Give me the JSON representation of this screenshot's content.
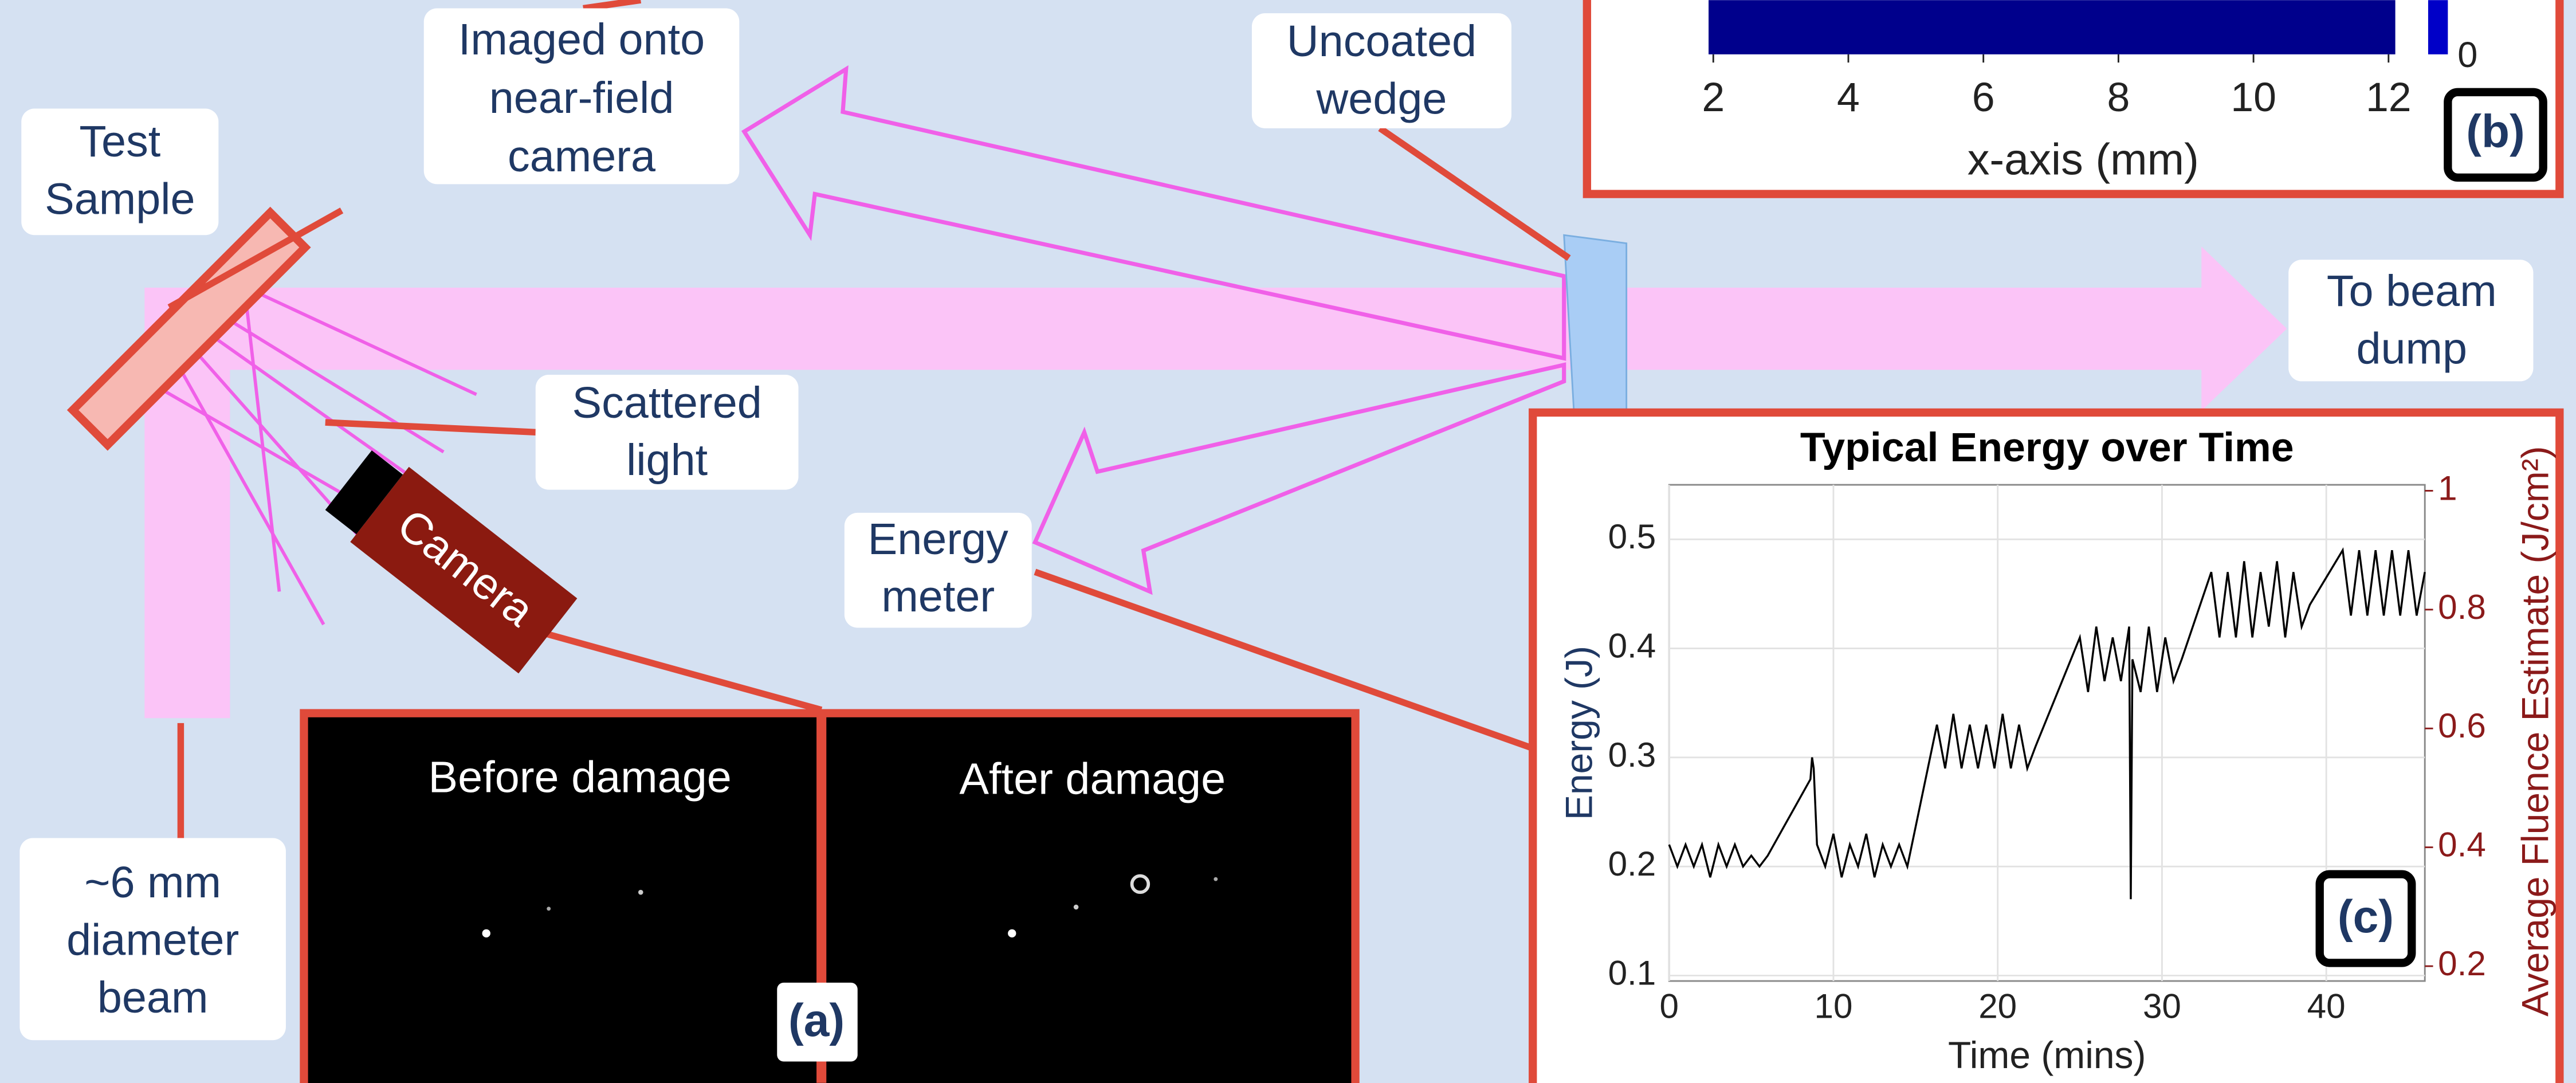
{
  "labels": {
    "imaged": [
      "Imaged onto",
      "near-field",
      "camera"
    ],
    "wedge": [
      "Uncoated",
      "wedge"
    ],
    "test_sample": [
      "Test",
      "Sample"
    ],
    "scattered": [
      "Scattered",
      "light"
    ],
    "energy_meter": [
      "Energy",
      "meter"
    ],
    "beam": [
      "~6 mm",
      "diameter",
      "beam"
    ],
    "beam_dump": [
      "To beam",
      "dump"
    ],
    "camera": "Camera"
  },
  "panel_a": {
    "before": "Before damage",
    "after": "After damage",
    "label": "(a)"
  },
  "panel_b": {
    "x_label": "x-axis (mm)",
    "xlim": [
      1.93,
      12.1
    ],
    "xticks": [
      2,
      4,
      6,
      8,
      10,
      12
    ],
    "colorbar_ticks": [
      0
    ],
    "label": "(b)"
  },
  "chart_data": {
    "type": "line",
    "title": "Typical Energy over Time",
    "x_label": "Time (mins)",
    "y_label": "Energy (J)",
    "y2_label": "Average Fluence Estimate (J/cm²)",
    "label": "(c)",
    "xlim": [
      0,
      46
    ],
    "xticks": [
      0,
      10,
      20,
      30,
      40
    ],
    "ylim": [
      0.095,
      0.55
    ],
    "yticks": [
      0.1,
      0.2,
      0.3,
      0.4,
      0.5
    ],
    "y2lim": [
      0.175,
      1.01
    ],
    "y2ticks": [
      0.2,
      0.4,
      0.6,
      0.8,
      1
    ],
    "grid": true,
    "x": [
      0,
      0.5,
      1,
      1.5,
      2,
      2.5,
      3,
      3.5,
      4,
      4.5,
      5,
      5.5,
      6,
      8.6,
      8.7,
      8.8,
      9,
      9.5,
      10,
      10.5,
      11,
      11.5,
      12,
      12.5,
      13,
      13.5,
      14,
      14.5,
      16.3,
      16.8,
      17.3,
      17.8,
      18.3,
      18.8,
      19.3,
      19.8,
      20.3,
      20.8,
      21.3,
      21.8,
      22.3,
      25,
      25.5,
      26,
      26.5,
      27,
      27.5,
      28,
      28.1,
      28.2,
      28.7,
      29.2,
      29.7,
      30.2,
      30.7,
      31.2,
      33,
      33.5,
      34,
      34.5,
      35,
      35.5,
      36,
      36.5,
      37,
      37.5,
      38,
      38.5,
      39,
      41,
      41.5,
      42,
      42.5,
      43,
      43.5,
      44,
      44.5,
      45,
      45.5,
      46
    ],
    "series": [
      {
        "name": "Energy",
        "color": "#000000",
        "values": [
          0.22,
          0.2,
          0.22,
          0.2,
          0.22,
          0.19,
          0.22,
          0.2,
          0.22,
          0.2,
          0.21,
          0.2,
          0.21,
          0.28,
          0.3,
          0.29,
          0.22,
          0.2,
          0.23,
          0.19,
          0.22,
          0.2,
          0.23,
          0.19,
          0.22,
          0.2,
          0.22,
          0.2,
          0.33,
          0.29,
          0.34,
          0.29,
          0.33,
          0.29,
          0.33,
          0.29,
          0.34,
          0.29,
          0.33,
          0.29,
          0.31,
          0.41,
          0.36,
          0.42,
          0.37,
          0.41,
          0.37,
          0.42,
          0.17,
          0.39,
          0.36,
          0.42,
          0.36,
          0.41,
          0.37,
          0.39,
          0.47,
          0.41,
          0.47,
          0.41,
          0.48,
          0.41,
          0.47,
          0.42,
          0.48,
          0.41,
          0.47,
          0.42,
          0.44,
          0.49,
          0.43,
          0.49,
          0.43,
          0.49,
          0.43,
          0.49,
          0.43,
          0.49,
          0.43,
          0.47
        ]
      }
    ]
  }
}
